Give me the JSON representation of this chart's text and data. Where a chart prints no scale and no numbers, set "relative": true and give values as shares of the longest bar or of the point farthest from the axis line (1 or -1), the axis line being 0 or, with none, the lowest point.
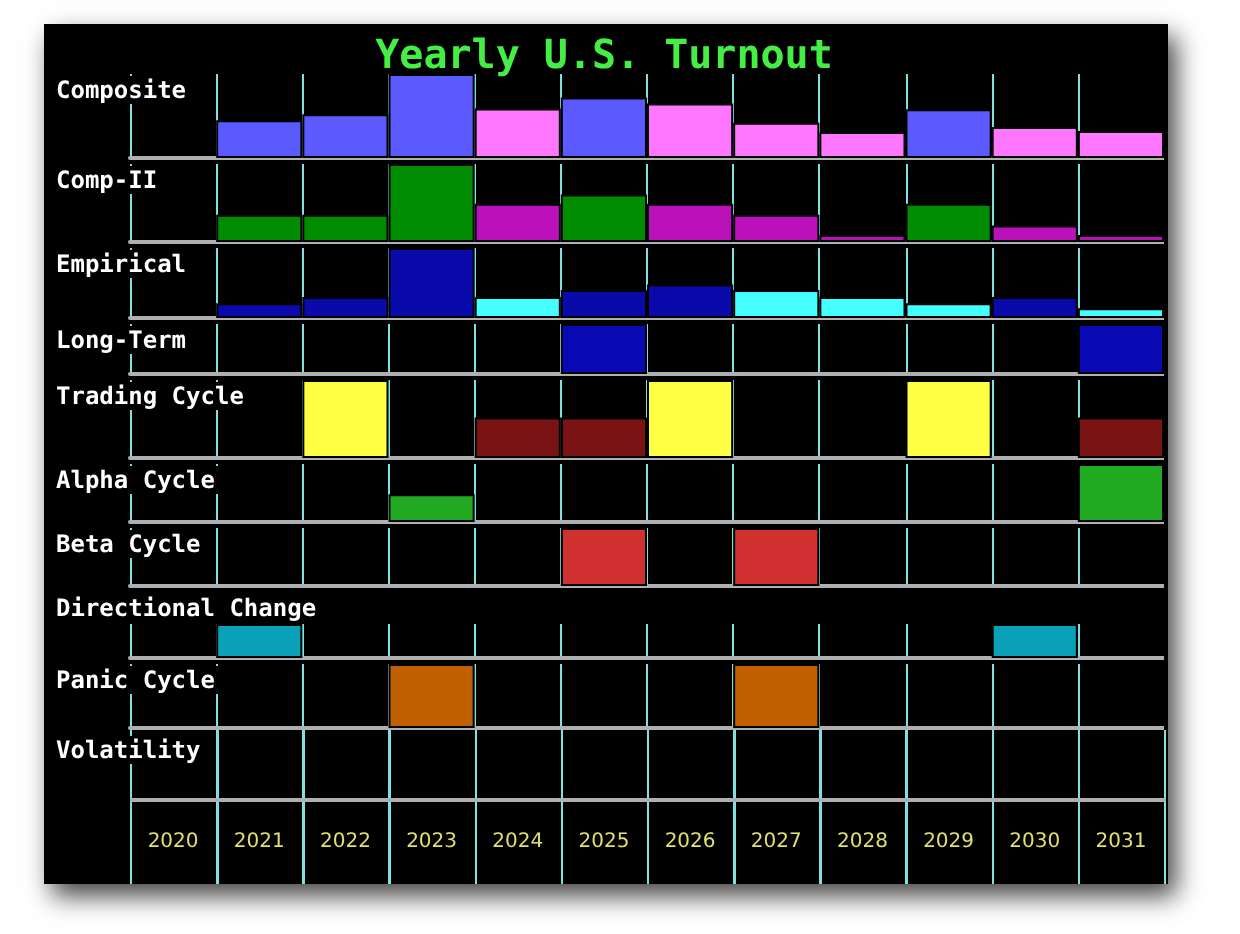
{
  "chart_data": [
    {
      "type": "bar",
      "title": "Yearly U.S. Turnout",
      "ylabel": "Composite",
      "relative": true,
      "tick_labels": false,
      "grid": "x",
      "categories": [
        "2020",
        "2021",
        "2022",
        "2023",
        "2024",
        "2025",
        "2026",
        "2027",
        "2028",
        "2029",
        "2030",
        "2031"
      ],
      "values": [
        null,
        0.45,
        0.52,
        1,
        0.59,
        0.72,
        0.65,
        0.42,
        0.31,
        0.58,
        0.37,
        0.32
      ],
      "colors": [
        "#5a5aff",
        "#5a5aff",
        "#5a5aff",
        "#5a5aff",
        "#ff77ff",
        "#5a5aff",
        "#ff77ff",
        "#ff77ff",
        "#ff77ff",
        "#5a5aff",
        "#ff77ff",
        "#ff77ff"
      ]
    },
    {
      "type": "bar",
      "ylabel": "Comp-II",
      "relative": true,
      "tick_labels": false,
      "grid": "x",
      "categories": [
        "2020",
        "2021",
        "2022",
        "2023",
        "2024",
        "2025",
        "2026",
        "2027",
        "2028",
        "2029",
        "2030",
        "2031"
      ],
      "values": [
        null,
        0.35,
        0.35,
        1,
        0.49,
        0.61,
        0.49,
        0.35,
        0.09,
        0.49,
        0.21,
        0.09
      ],
      "colors": [
        "#008c00",
        "#008c00",
        "#008c00",
        "#008c00",
        "#bb11bb",
        "#008c00",
        "#bb11bb",
        "#bb11bb",
        "#bb11bb",
        "#008c00",
        "#bb11bb",
        "#bb11bb"
      ]
    },
    {
      "type": "bar",
      "ylabel": "Empirical",
      "relative": true,
      "tick_labels": false,
      "grid": "x",
      "categories": [
        "2020",
        "2021",
        "2022",
        "2023",
        "2024",
        "2025",
        "2026",
        "2027",
        "2028",
        "2029",
        "2030",
        "2031"
      ],
      "values": [
        null,
        0.21,
        0.3,
        1,
        0.3,
        0.4,
        0.48,
        0.4,
        0.3,
        0.21,
        0.3,
        0.14
      ],
      "colors": [
        "#0a0aaa",
        "#0a0aaa",
        "#0a0aaa",
        "#0a0aaa",
        "#44ffff",
        "#0a0aaa",
        "#0a0aaa",
        "#44ffff",
        "#44ffff",
        "#44ffff",
        "#0a0aaa",
        "#44ffff"
      ]
    },
    {
      "type": "bar",
      "ylabel": "Long-Term",
      "relative": true,
      "tick_labels": false,
      "grid": "x",
      "categories": [
        "2020",
        "2021",
        "2022",
        "2023",
        "2024",
        "2025",
        "2026",
        "2027",
        "2028",
        "2029",
        "2030",
        "2031"
      ],
      "values": [
        null,
        null,
        null,
        null,
        null,
        1,
        null,
        null,
        null,
        null,
        null,
        1
      ],
      "colors": [
        "#0a0ab4",
        "#0a0ab4",
        "#0a0ab4",
        "#0a0ab4",
        "#0a0ab4",
        "#0a0ab4",
        "#0a0ab4",
        "#0a0ab4",
        "#0a0ab4",
        "#0a0ab4",
        "#0a0ab4",
        "#0a0ab4"
      ]
    },
    {
      "type": "bar",
      "ylabel": "Trading Cycle",
      "relative": true,
      "tick_labels": false,
      "grid": "x",
      "categories": [
        "2020",
        "2021",
        "2022",
        "2023",
        "2024",
        "2025",
        "2026",
        "2027",
        "2028",
        "2029",
        "2030",
        "2031"
      ],
      "values": [
        null,
        null,
        1,
        null,
        0.52,
        0.52,
        1,
        null,
        null,
        1,
        null,
        0.52
      ],
      "colors": [
        "#ffff44",
        "#ffff44",
        "#ffff44",
        "#ffff44",
        "#7a1414",
        "#7a1414",
        "#ffff44",
        "#ffff44",
        "#ffff44",
        "#ffff44",
        "#ffff44",
        "#7a1414"
      ]
    },
    {
      "type": "bar",
      "ylabel": "Alpha Cycle",
      "relative": true,
      "tick_labels": false,
      "grid": "x",
      "categories": [
        "2020",
        "2021",
        "2022",
        "2023",
        "2024",
        "2025",
        "2026",
        "2027",
        "2028",
        "2029",
        "2030",
        "2031"
      ],
      "values": [
        null,
        null,
        null,
        0.48,
        null,
        null,
        null,
        null,
        null,
        null,
        null,
        1
      ],
      "colors": [
        "#22aa22",
        "#22aa22",
        "#22aa22",
        "#22aa22",
        "#22aa22",
        "#22aa22",
        "#22aa22",
        "#22aa22",
        "#22aa22",
        "#22aa22",
        "#22aa22",
        "#22aa22"
      ]
    },
    {
      "type": "bar",
      "ylabel": "Beta Cycle",
      "relative": true,
      "tick_labels": false,
      "grid": "x",
      "categories": [
        "2020",
        "2021",
        "2022",
        "2023",
        "2024",
        "2025",
        "2026",
        "2027",
        "2028",
        "2029",
        "2030",
        "2031"
      ],
      "values": [
        null,
        null,
        null,
        null,
        null,
        1,
        null,
        1,
        null,
        null,
        null,
        null
      ],
      "colors": [
        "#d03030",
        "#d03030",
        "#d03030",
        "#d03030",
        "#d03030",
        "#d03030",
        "#d03030",
        "#d03030",
        "#d03030",
        "#d03030",
        "#d03030",
        "#d03030"
      ]
    },
    {
      "type": "bar",
      "ylabel": "Directional Change",
      "relative": true,
      "tick_labels": false,
      "grid": "x",
      "categories": [
        "2020",
        "2021",
        "2022",
        "2023",
        "2024",
        "2025",
        "2026",
        "2027",
        "2028",
        "2029",
        "2030",
        "2031"
      ],
      "values": [
        null,
        1,
        null,
        null,
        null,
        null,
        null,
        null,
        null,
        null,
        1,
        null
      ],
      "colors": [
        "#0aa0b8",
        "#0aa0b8",
        "#0aa0b8",
        "#0aa0b8",
        "#0aa0b8",
        "#0aa0b8",
        "#0aa0b8",
        "#0aa0b8",
        "#0aa0b8",
        "#0aa0b8",
        "#0aa0b8",
        "#0aa0b8"
      ]
    },
    {
      "type": "bar",
      "ylabel": "Panic Cycle",
      "relative": true,
      "tick_labels": "x",
      "grid": "x",
      "categories": [
        "2020",
        "2021",
        "2022",
        "2023",
        "2024",
        "2025",
        "2026",
        "2027",
        "2028",
        "2029",
        "2030",
        "2031"
      ],
      "values": [
        null,
        null,
        null,
        1,
        null,
        null,
        null,
        1,
        null,
        null,
        null,
        null
      ],
      "colors": [
        "#c06000",
        "#c06000",
        "#c06000",
        "#c06000",
        "#c06000",
        "#c06000",
        "#c06000",
        "#c06000",
        "#c06000",
        "#c06000",
        "#c06000",
        "#c06000"
      ]
    },
    {
      "type": "other",
      "ylabel": "Volatility"
    }
  ]
}
